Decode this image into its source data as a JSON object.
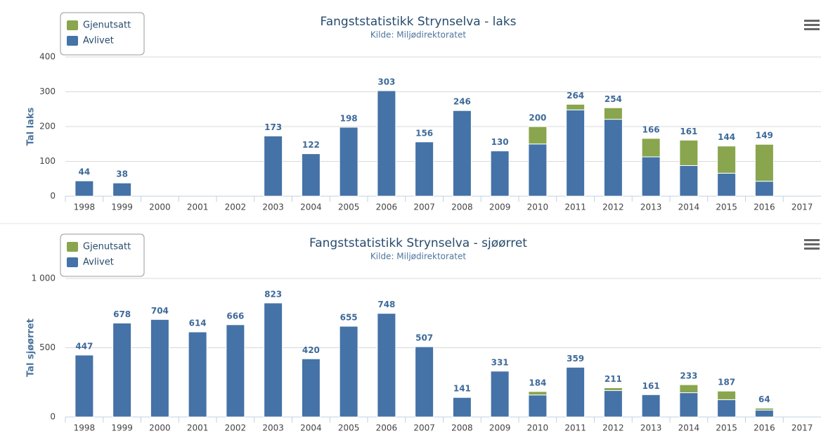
{
  "chart_data": [
    {
      "type": "bar",
      "stacked": true,
      "title": "Fangststatistikk Strynselva - laks",
      "subtitle": "Kilde: Miljødirektoratet",
      "y_label": "Tal laks",
      "categories": [
        "1998",
        "1999",
        "2000",
        "2001",
        "2002",
        "2003",
        "2004",
        "2005",
        "2006",
        "2007",
        "2008",
        "2009",
        "2010",
        "2011",
        "2012",
        "2013",
        "2014",
        "2015",
        "2016",
        "2017"
      ],
      "series": [
        {
          "name": "Avlivet",
          "color": "#4572a7",
          "values": [
            44,
            38,
            null,
            null,
            null,
            173,
            122,
            198,
            303,
            156,
            246,
            130,
            150,
            248,
            221,
            113,
            88,
            66,
            43,
            null
          ]
        },
        {
          "name": "Gjenutsatt",
          "color": "#89a54e",
          "values": [
            0,
            0,
            null,
            null,
            null,
            0,
            0,
            0,
            0,
            0,
            0,
            0,
            50,
            16,
            33,
            53,
            73,
            78,
            106,
            null
          ]
        }
      ],
      "totals": [
        44,
        38,
        null,
        null,
        null,
        173,
        122,
        198,
        303,
        156,
        246,
        130,
        200,
        264,
        254,
        166,
        161,
        144,
        149,
        null
      ],
      "ylim": [
        0,
        400
      ],
      "yticks": [
        0,
        100,
        200,
        300,
        400
      ],
      "grid": true
    },
    {
      "type": "bar",
      "stacked": true,
      "title": "Fangststatistikk Strynselva - sjøørret",
      "subtitle": "Kilde: Miljødirektoratet",
      "y_label": "Tal sjøørret",
      "categories": [
        "1998",
        "1999",
        "2000",
        "2001",
        "2002",
        "2003",
        "2004",
        "2005",
        "2006",
        "2007",
        "2008",
        "2009",
        "2010",
        "2011",
        "2012",
        "2013",
        "2014",
        "2015",
        "2016",
        "2017"
      ],
      "series": [
        {
          "name": "Avlivet",
          "color": "#4572a7",
          "values": [
            447,
            678,
            704,
            614,
            666,
            823,
            420,
            655,
            748,
            507,
            141,
            331,
            159,
            359,
            191,
            161,
            175,
            125,
            50,
            null
          ]
        },
        {
          "name": "Gjenutsatt",
          "color": "#89a54e",
          "values": [
            0,
            0,
            0,
            0,
            0,
            0,
            0,
            0,
            0,
            0,
            0,
            0,
            25,
            0,
            20,
            0,
            58,
            62,
            14,
            null
          ]
        }
      ],
      "totals": [
        447,
        678,
        704,
        614,
        666,
        823,
        420,
        655,
        748,
        507,
        141,
        331,
        184,
        359,
        211,
        161,
        233,
        187,
        64,
        null
      ],
      "ylim": [
        0,
        1000
      ],
      "yticks": [
        0,
        500,
        {
          "value": 1000,
          "label": "1 000"
        }
      ],
      "grid": true
    }
  ]
}
